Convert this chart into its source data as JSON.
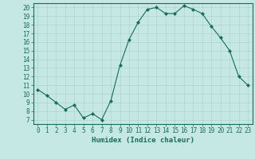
{
  "x": [
    0,
    1,
    2,
    3,
    4,
    5,
    6,
    7,
    8,
    9,
    10,
    11,
    12,
    13,
    14,
    15,
    16,
    17,
    18,
    19,
    20,
    21,
    22,
    23
  ],
  "y": [
    10.5,
    9.8,
    9.0,
    8.2,
    8.7,
    7.2,
    7.7,
    7.0,
    9.2,
    13.3,
    16.3,
    18.3,
    19.8,
    20.0,
    19.3,
    19.3,
    20.2,
    19.8,
    19.3,
    17.8,
    16.5,
    15.0,
    12.0,
    11.0
  ],
  "line_color": "#1a6b5a",
  "marker": "D",
  "marker_size": 2.0,
  "bg_color": "#c5e8e5",
  "grid_color": "#afd4d0",
  "xlabel": "Humidex (Indice chaleur)",
  "xlim": [
    -0.5,
    23.5
  ],
  "ylim": [
    6.5,
    20.5
  ],
  "yticks": [
    7,
    8,
    9,
    10,
    11,
    12,
    13,
    14,
    15,
    16,
    17,
    18,
    19,
    20
  ],
  "xticks": [
    0,
    1,
    2,
    3,
    4,
    5,
    6,
    7,
    8,
    9,
    10,
    11,
    12,
    13,
    14,
    15,
    16,
    17,
    18,
    19,
    20,
    21,
    22,
    23
  ],
  "tick_color": "#1a6b5a",
  "label_color": "#1a6b5a",
  "axis_color": "#1a6b5a",
  "font_size": 5.5,
  "xlabel_fontsize": 6.5
}
